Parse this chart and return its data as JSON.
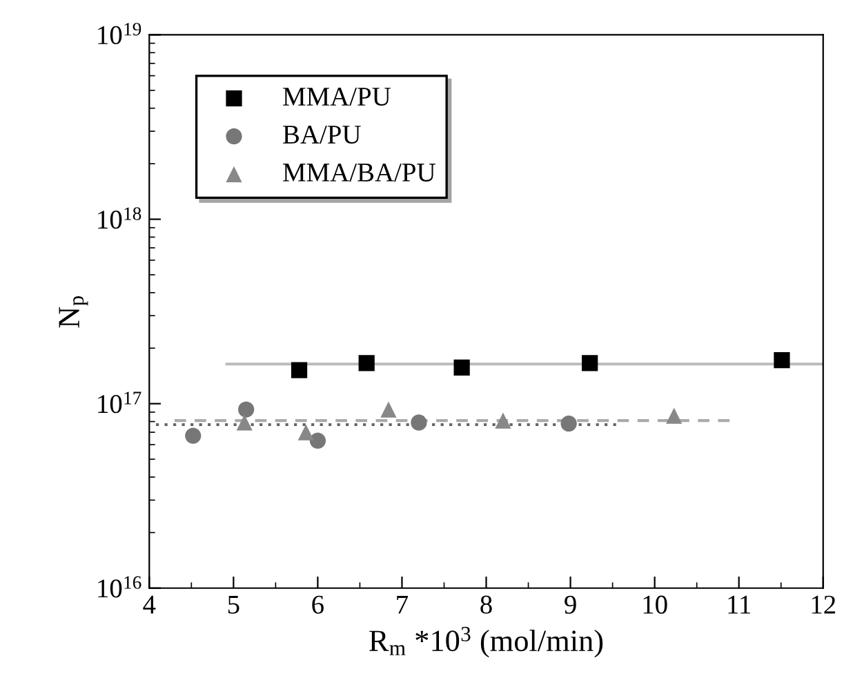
{
  "chart_data": {
    "type": "scatter",
    "xlabel": "R$_{m}$ *10$^{3}$ (mol/min)",
    "ylabel": "N$_{p}$",
    "log": "y",
    "xlim": [
      4,
      12
    ],
    "xticks": [
      4,
      5,
      6,
      7,
      8,
      9,
      10,
      11,
      12
    ],
    "ylim": [
      1e+16,
      1e+19
    ],
    "yticks": [
      {
        "value": 1e+16,
        "label": "10$^{16}$"
      },
      {
        "value": 1e+17,
        "label": "10$^{17}$"
      },
      {
        "value": 1e+18,
        "label": "10$^{18}$"
      },
      {
        "value": 1e+19,
        "label": "10$^{19}$"
      }
    ],
    "grid": false,
    "legend": "top left",
    "series": [
      {
        "name": "MMA/PU",
        "marker": "square",
        "color": "#000000",
        "x": [
          5.78,
          6.58,
          7.71,
          9.23,
          11.51
        ],
        "values": [
          1.52e+17,
          1.66e+17,
          1.57e+17,
          1.66e+17,
          1.72e+17
        ]
      },
      {
        "name": "BA/PU",
        "marker": "circle",
        "color": "#777777",
        "x": [
          4.52,
          5.15,
          6.0,
          7.2,
          8.98
        ],
        "values": [
          6.7e+16,
          9.3e+16,
          6.3e+16,
          7.9e+16,
          7.8e+16
        ]
      },
      {
        "name": "MMA/BA/PU",
        "marker": "triangle",
        "color": "#888888",
        "x": [
          5.13,
          5.86,
          6.84,
          8.2,
          10.23
        ],
        "values": [
          7.9e+16,
          7e+16,
          9.3e+16,
          8.1e+16,
          8.6e+16
        ]
      },
      {
        "type": "line",
        "marker": "none",
        "line_style": "solid",
        "color": "#bbbbbb",
        "x": [
          4.92,
          12
        ],
        "values": [
          1.64e+17,
          1.64e+17
        ]
      },
      {
        "type": "line",
        "marker": "none",
        "line_style": "dotted",
        "color": "#666666",
        "x": [
          4.08,
          9.59
        ],
        "values": [
          7.7e+16,
          7.7e+16
        ]
      },
      {
        "type": "line",
        "marker": "none",
        "line_style": "dashed",
        "color": "#aaaaaa",
        "x": [
          4.3,
          10.9
        ],
        "values": [
          8.1e+16,
          8.1e+16
        ]
      }
    ]
  }
}
